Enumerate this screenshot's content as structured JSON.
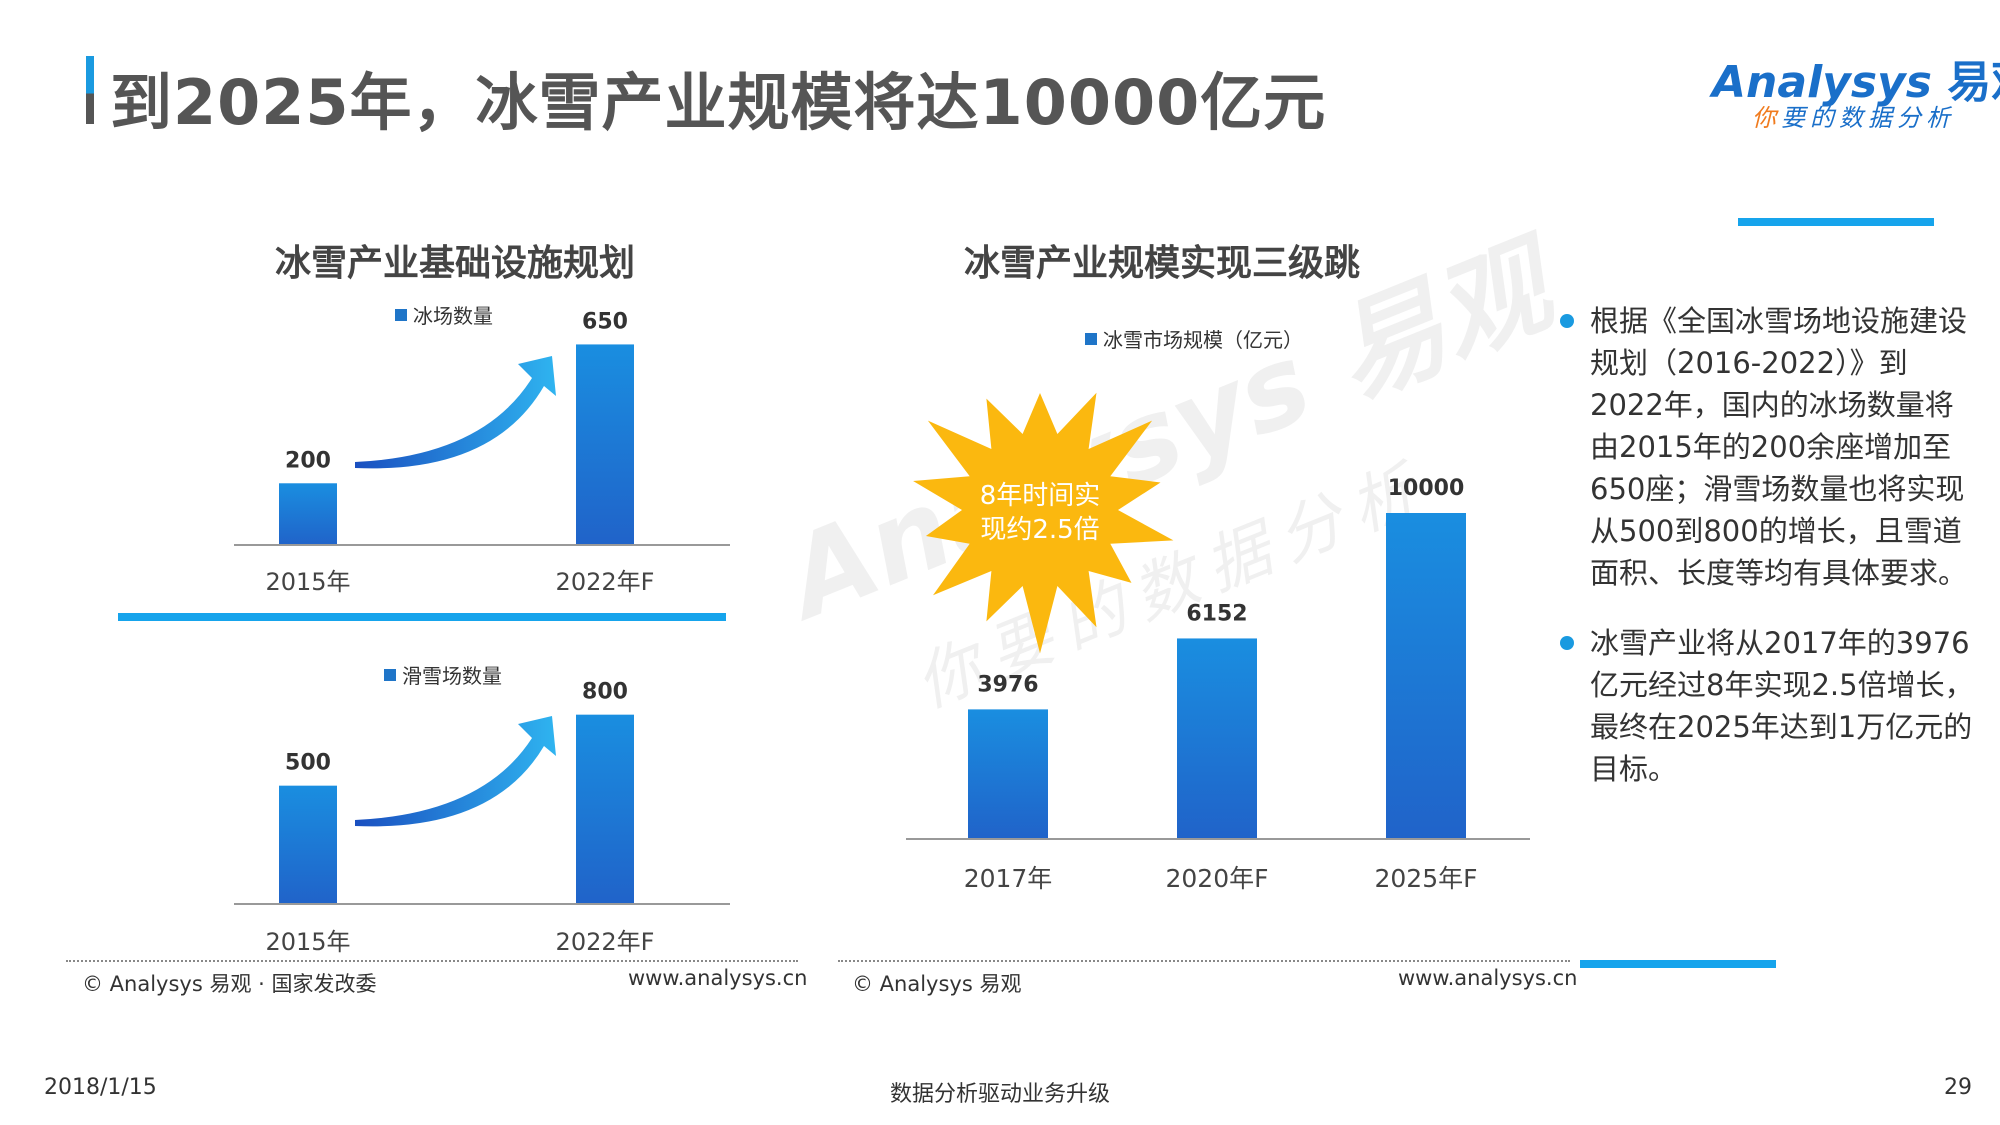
{
  "header": {
    "title": "到2025年，冰雪产业规模将达10000亿元"
  },
  "logo": {
    "brand": "Analysys",
    "brand_cn": "易观",
    "slogan_first": "你",
    "slogan_rest": "要的数据分析"
  },
  "watermark": {
    "brand": "Analysys 易观",
    "slogan": "你要的数据分析"
  },
  "left_section": {
    "title": "冰雪产业基础设施规划"
  },
  "chart_data": [
    {
      "type": "bar",
      "legend": "冰场数量",
      "series": [
        {
          "name": "冰场数量",
          "values": [
            200,
            650
          ]
        }
      ],
      "categories": [
        "2015年",
        "2022年F"
      ],
      "ylim": [
        0,
        700
      ],
      "color": "#1f75c8"
    },
    {
      "type": "bar",
      "legend": "滑雪场数量",
      "series": [
        {
          "name": "滑雪场数量",
          "values": [
            500,
            800
          ]
        }
      ],
      "categories": [
        "2015年",
        "2022年F"
      ],
      "ylim": [
        0,
        900
      ],
      "color": "#1f75c8"
    },
    {
      "type": "bar",
      "title": "冰雪产业规模实现三级跳",
      "legend": "冰雪市场规模（亿元）",
      "series": [
        {
          "name": "冰雪市场规模（亿元）",
          "values": [
            3976,
            6152,
            10000
          ]
        }
      ],
      "categories": [
        "2017年",
        "2020年F",
        "2025年F"
      ],
      "ylim": [
        0,
        11000
      ],
      "annotation": "8年时间实现约2.5倍",
      "color": "#1f75c8"
    }
  ],
  "sources": {
    "left": "© Analysys 易观 · 国家发改委",
    "left_url": "www.analysys.cn",
    "right": "© Analysys 易观",
    "right_url": "www.analysys.cn"
  },
  "bullets": [
    "根据《全国冰雪场地设施建设规划（2016-2022）》到2022年，国内的冰场数量将由2015年的200余座增加至650座；滑雪场数量也将实现从500到800的增长，且雪道面积、长度等均有具体要求。",
    "冰雪产业将从2017年的3976亿元经过8年实现2.5倍增长，最终在2025年达到1万亿元的目标。"
  ],
  "footer": {
    "date": "2018/1/15",
    "center": "数据分析驱动业务升级",
    "page": "29"
  }
}
